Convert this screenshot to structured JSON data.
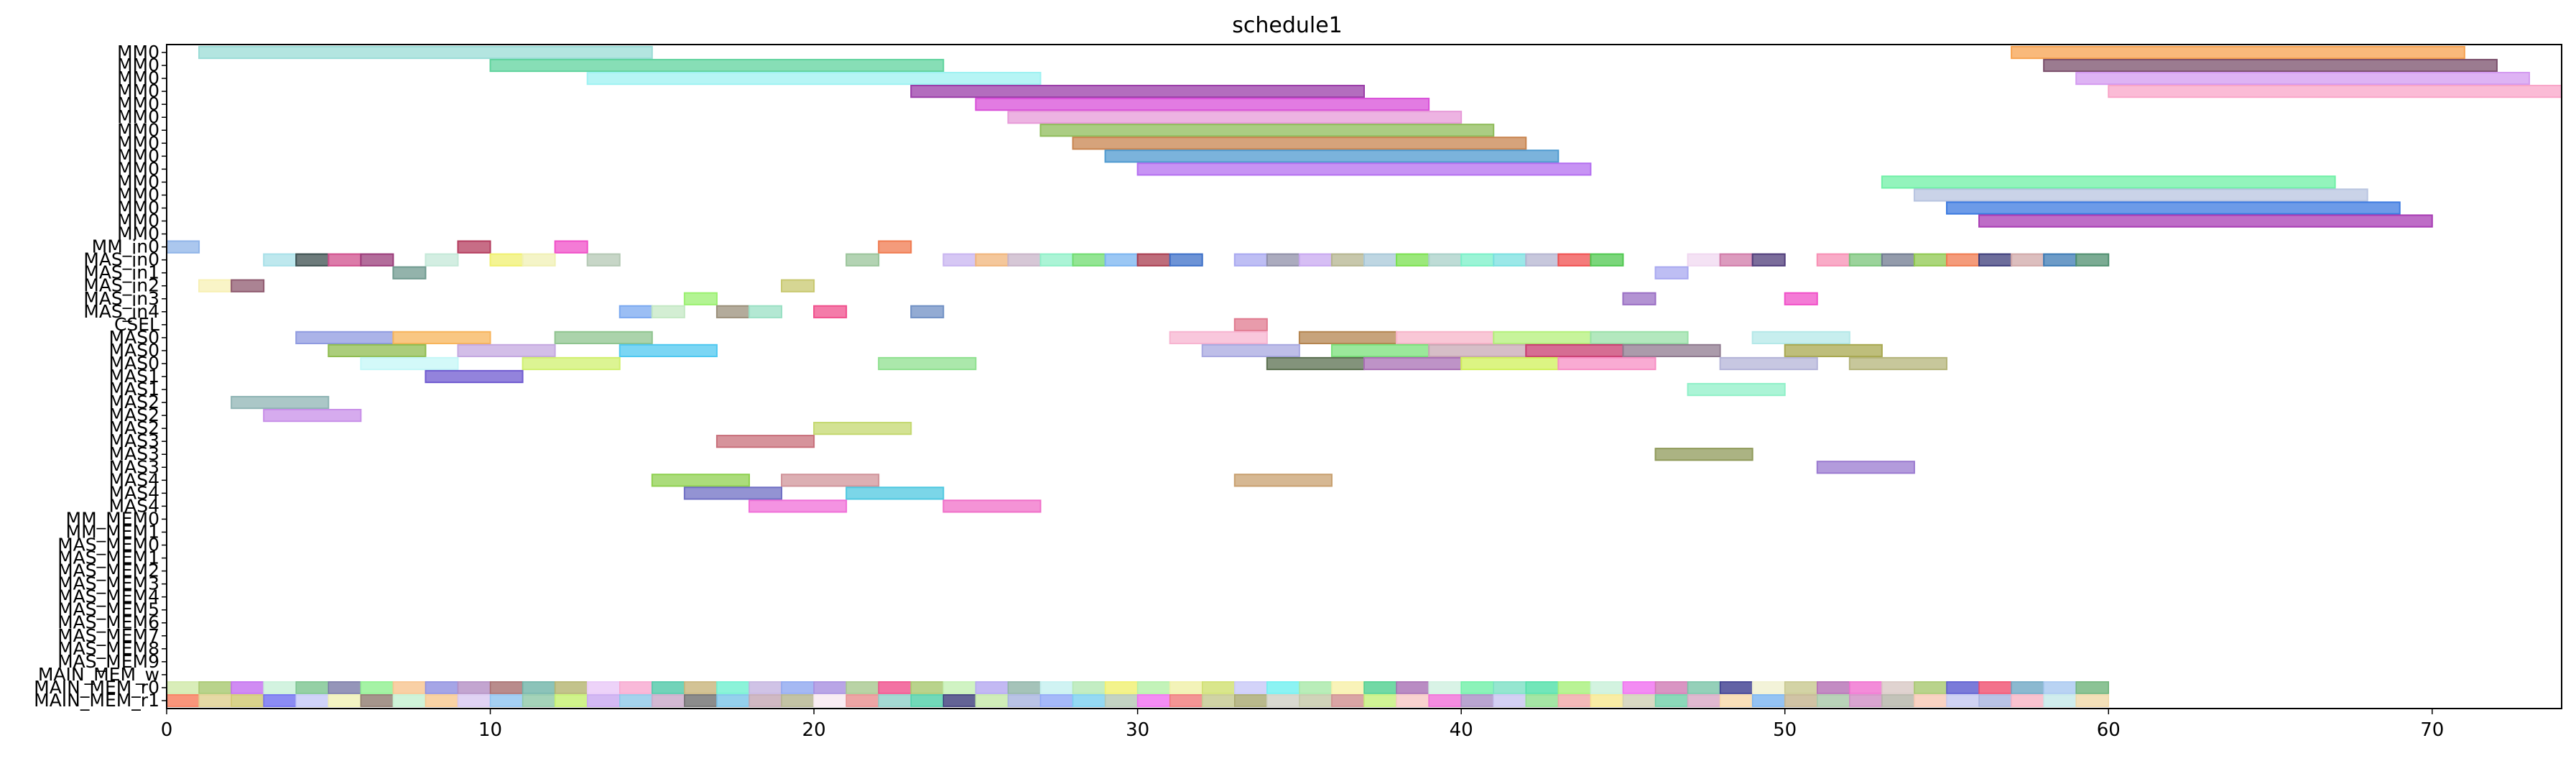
{
  "chart_data": {
    "type": "gantt",
    "title": "schedule1",
    "xlabel": "",
    "ylabel": "",
    "xlim": [
      0,
      74
    ],
    "x_ticks": [
      0,
      10,
      20,
      30,
      40,
      50,
      60,
      70
    ],
    "x_tick_labels": [
      "0",
      "10",
      "20",
      "30",
      "40",
      "50",
      "60",
      "70"
    ],
    "grid": false,
    "legend": "none",
    "rows": [
      "MM0",
      "MM0",
      "MM0",
      "MM0",
      "MM0",
      "MM0",
      "MM0",
      "MM0",
      "MM0",
      "MM0",
      "MM0",
      "MM0",
      "MM0",
      "MM0",
      "MM0",
      "MM_in0",
      "MAS_in0",
      "MAS_in1",
      "MAS_in2",
      "MAS_in3",
      "MAS_in4",
      "CSEL",
      "MAS0",
      "MAS0",
      "MAS0",
      "MAS1",
      "MAS1",
      "MAS2",
      "MAS2",
      "MAS2",
      "MAS3",
      "MAS3",
      "MAS3",
      "MAS4",
      "MAS4",
      "MAS4",
      "MM_MEM0",
      "MM_MEM1",
      "MAS_MEM0",
      "MAS_MEM1",
      "MAS_MEM2",
      "MAS_MEM3",
      "MAS_MEM4",
      "MAS_MEM5",
      "MAS_MEM6",
      "MAS_MEM7",
      "MAS_MEM8",
      "MAS_MEM9",
      "MAIN_MEM_w",
      "MAIN_MEM_r0",
      "MAIN_MEM_r1"
    ],
    "tasks": [
      {
        "row": 0,
        "start": 1,
        "end": 15,
        "color": "#9adcd6"
      },
      {
        "row": 0,
        "start": 57,
        "end": 71,
        "color": "#f7a24f"
      },
      {
        "row": 1,
        "start": 10,
        "end": 24,
        "color": "#5fd39d"
      },
      {
        "row": 1,
        "start": 58,
        "end": 72,
        "color": "#7a4f6b"
      },
      {
        "row": 2,
        "start": 13,
        "end": 27,
        "color": "#9ef2f2"
      },
      {
        "row": 2,
        "start": 59,
        "end": 73,
        "color": "#d39af0"
      },
      {
        "row": 3,
        "start": 23,
        "end": 37,
        "color": "#9a3ca8"
      },
      {
        "row": 3,
        "start": 60,
        "end": 74,
        "color": "#f9a4c8"
      },
      {
        "row": 4,
        "start": 25,
        "end": 39,
        "color": "#d84fd8"
      },
      {
        "row": 5,
        "start": 26,
        "end": 40,
        "color": "#e79ad8"
      },
      {
        "row": 6,
        "start": 27,
        "end": 41,
        "color": "#8fbc5a"
      },
      {
        "row": 7,
        "start": 28,
        "end": 42,
        "color": "#c8844f"
      },
      {
        "row": 8,
        "start": 29,
        "end": 43,
        "color": "#4f9ad0"
      },
      {
        "row": 9,
        "start": 30,
        "end": 44,
        "color": "#b46ff0"
      },
      {
        "row": 10,
        "start": 53,
        "end": 67,
        "color": "#6ff0a6"
      },
      {
        "row": 11,
        "start": 54,
        "end": 68,
        "color": "#b8c4e0"
      },
      {
        "row": 12,
        "start": 55,
        "end": 69,
        "color": "#3c7ae0"
      },
      {
        "row": 13,
        "start": 56,
        "end": 70,
        "color": "#a83cb4"
      },
      {
        "row": 15,
        "start": 0,
        "end": 1,
        "color": "#8fb4e8"
      },
      {
        "row": 15,
        "start": 9,
        "end": 10,
        "color": "#b43c5e"
      },
      {
        "row": 15,
        "start": 12,
        "end": 13,
        "color": "#f04fc8"
      },
      {
        "row": 15,
        "start": 22,
        "end": 23,
        "color": "#f07a4f"
      },
      {
        "row": 16,
        "start": 3,
        "end": 4,
        "color": "#a8e0e8"
      },
      {
        "row": 16,
        "start": 4,
        "end": 5,
        "color": "#3c4f4f"
      },
      {
        "row": 16,
        "start": 5,
        "end": 6,
        "color": "#d04f8c"
      },
      {
        "row": 16,
        "start": 6,
        "end": 7,
        "color": "#9a3c7a"
      },
      {
        "row": 16,
        "start": 8,
        "end": 9,
        "color": "#c4e8d8"
      },
      {
        "row": 16,
        "start": 10,
        "end": 11,
        "color": "#f0f06f"
      },
      {
        "row": 16,
        "start": 11,
        "end": 12,
        "color": "#f0f0b4"
      },
      {
        "row": 16,
        "start": 13,
        "end": 14,
        "color": "#b4c8b4"
      },
      {
        "row": 16,
        "start": 21,
        "end": 22,
        "color": "#9ac49a"
      },
      {
        "row": 16,
        "start": 24,
        "end": 25,
        "color": "#c8b4f0"
      },
      {
        "row": 16,
        "start": 25,
        "end": 26,
        "color": "#f0b47a"
      },
      {
        "row": 16,
        "start": 26,
        "end": 27,
        "color": "#c8b4c8"
      },
      {
        "row": 16,
        "start": 27,
        "end": 28,
        "color": "#8ff0c8"
      },
      {
        "row": 16,
        "start": 28,
        "end": 29,
        "color": "#6fdc6f"
      },
      {
        "row": 16,
        "start": 29,
        "end": 30,
        "color": "#7ab4f0"
      },
      {
        "row": 16,
        "start": 30,
        "end": 31,
        "color": "#a83c4f"
      },
      {
        "row": 16,
        "start": 31,
        "end": 32,
        "color": "#3c6fc8"
      },
      {
        "row": 16,
        "start": 33,
        "end": 34,
        "color": "#a8a8f0"
      },
      {
        "row": 16,
        "start": 34,
        "end": 35,
        "color": "#8f8fa8"
      },
      {
        "row": 16,
        "start": 35,
        "end": 36,
        "color": "#c8a8f0"
      },
      {
        "row": 16,
        "start": 36,
        "end": 37,
        "color": "#b4b48f"
      },
      {
        "row": 16,
        "start": 37,
        "end": 38,
        "color": "#a8c8d8"
      },
      {
        "row": 16,
        "start": 38,
        "end": 39,
        "color": "#7ae04f"
      },
      {
        "row": 16,
        "start": 39,
        "end": 40,
        "color": "#a8d0c8"
      },
      {
        "row": 16,
        "start": 40,
        "end": 41,
        "color": "#7af0c8"
      },
      {
        "row": 16,
        "start": 41,
        "end": 42,
        "color": "#7ae0e0"
      },
      {
        "row": 16,
        "start": 42,
        "end": 43,
        "color": "#b4b4d0"
      },
      {
        "row": 16,
        "start": 43,
        "end": 44,
        "color": "#f04f4f"
      },
      {
        "row": 16,
        "start": 44,
        "end": 45,
        "color": "#4fc84f"
      },
      {
        "row": 16,
        "start": 47,
        "end": 48,
        "color": "#f0d8f0"
      },
      {
        "row": 16,
        "start": 48,
        "end": 49,
        "color": "#d07aa8"
      },
      {
        "row": 16,
        "start": 49,
        "end": 50,
        "color": "#4f3c7a"
      },
      {
        "row": 16,
        "start": 51,
        "end": 52,
        "color": "#f78fb4"
      },
      {
        "row": 16,
        "start": 52,
        "end": 53,
        "color": "#7ac47a"
      },
      {
        "row": 16,
        "start": 53,
        "end": 54,
        "color": "#6f7a8f"
      },
      {
        "row": 16,
        "start": 54,
        "end": 55,
        "color": "#8fc84f"
      },
      {
        "row": 16,
        "start": 55,
        "end": 56,
        "color": "#f07a4f"
      },
      {
        "row": 16,
        "start": 56,
        "end": 57,
        "color": "#3c3c7a"
      },
      {
        "row": 16,
        "start": 57,
        "end": 58,
        "color": "#d0a8a8"
      },
      {
        "row": 16,
        "start": 58,
        "end": 59,
        "color": "#3c7ab4"
      },
      {
        "row": 16,
        "start": 59,
        "end": 60,
        "color": "#4f8f6f"
      },
      {
        "row": 17,
        "start": 7,
        "end": 8,
        "color": "#6f9a8f"
      },
      {
        "row": 17,
        "start": 46,
        "end": 47,
        "color": "#a8a8f0"
      },
      {
        "row": 18,
        "start": 1,
        "end": 2,
        "color": "#f7f0b4"
      },
      {
        "row": 18,
        "start": 2,
        "end": 3,
        "color": "#8f5a6f"
      },
      {
        "row": 18,
        "start": 19,
        "end": 20,
        "color": "#c8c86f"
      },
      {
        "row": 19,
        "start": 16,
        "end": 17,
        "color": "#9af06f"
      },
      {
        "row": 19,
        "start": 45,
        "end": 46,
        "color": "#9a6fc4"
      },
      {
        "row": 19,
        "start": 50,
        "end": 51,
        "color": "#f04fc8"
      },
      {
        "row": 20,
        "start": 14,
        "end": 15,
        "color": "#7aa8f0"
      },
      {
        "row": 20,
        "start": 15,
        "end": 16,
        "color": "#c4e8c4"
      },
      {
        "row": 20,
        "start": 17,
        "end": 18,
        "color": "#9a8f7a"
      },
      {
        "row": 20,
        "start": 18,
        "end": 19,
        "color": "#9ae0c4"
      },
      {
        "row": 20,
        "start": 20,
        "end": 21,
        "color": "#f04f8c"
      },
      {
        "row": 20,
        "start": 23,
        "end": 24,
        "color": "#6f8fc4"
      },
      {
        "row": 21,
        "start": 33,
        "end": 34,
        "color": "#e07a8f"
      },
      {
        "row": 22,
        "start": 4,
        "end": 7,
        "color": "#8f9ae0"
      },
      {
        "row": 22,
        "start": 7,
        "end": 10,
        "color": "#f7b45a"
      },
      {
        "row": 22,
        "start": 12,
        "end": 15,
        "color": "#8fc48f"
      },
      {
        "row": 22,
        "start": 31,
        "end": 34,
        "color": "#f7b4d0"
      },
      {
        "row": 22,
        "start": 35,
        "end": 38,
        "color": "#b4844f"
      },
      {
        "row": 22,
        "start": 38,
        "end": 41,
        "color": "#f7b4c8"
      },
      {
        "row": 22,
        "start": 41,
        "end": 44,
        "color": "#b4f07a"
      },
      {
        "row": 22,
        "start": 44,
        "end": 47,
        "color": "#9ae0a8"
      },
      {
        "row": 22,
        "start": 49,
        "end": 52,
        "color": "#b4e8e8"
      },
      {
        "row": 23,
        "start": 5,
        "end": 8,
        "color": "#8fbc4f"
      },
      {
        "row": 23,
        "start": 9,
        "end": 12,
        "color": "#c4a8e0"
      },
      {
        "row": 23,
        "start": 14,
        "end": 17,
        "color": "#4fc8f0"
      },
      {
        "row": 23,
        "start": 32,
        "end": 35,
        "color": "#a8a8e0"
      },
      {
        "row": 23,
        "start": 36,
        "end": 39,
        "color": "#7ae07a"
      },
      {
        "row": 23,
        "start": 39,
        "end": 42,
        "color": "#c8a8b4"
      },
      {
        "row": 23,
        "start": 42,
        "end": 45,
        "color": "#c83c6f"
      },
      {
        "row": 23,
        "start": 45,
        "end": 48,
        "color": "#8f7a8f"
      },
      {
        "row": 23,
        "start": 50,
        "end": 53,
        "color": "#a8a84f"
      },
      {
        "row": 24,
        "start": 6,
        "end": 9,
        "color": "#c4f7f7"
      },
      {
        "row": 24,
        "start": 11,
        "end": 14,
        "color": "#d0f06f"
      },
      {
        "row": 24,
        "start": 22,
        "end": 25,
        "color": "#8fe08f"
      },
      {
        "row": 24,
        "start": 34,
        "end": 37,
        "color": "#5a6f4f"
      },
      {
        "row": 24,
        "start": 37,
        "end": 40,
        "color": "#a86fb4"
      },
      {
        "row": 24,
        "start": 40,
        "end": 43,
        "color": "#d0f05a"
      },
      {
        "row": 24,
        "start": 43,
        "end": 46,
        "color": "#f78fc4"
      },
      {
        "row": 24,
        "start": 48,
        "end": 51,
        "color": "#b4b4d8"
      },
      {
        "row": 24,
        "start": 52,
        "end": 55,
        "color": "#b4b47a"
      },
      {
        "row": 25,
        "start": 8,
        "end": 11,
        "color": "#6f5ad0"
      },
      {
        "row": 26,
        "start": 47,
        "end": 50,
        "color": "#8ff0c8"
      },
      {
        "row": 27,
        "start": 2,
        "end": 5,
        "color": "#8fb4b4"
      },
      {
        "row": 28,
        "start": 3,
        "end": 6,
        "color": "#c88fe8"
      },
      {
        "row": 29,
        "start": 20,
        "end": 23,
        "color": "#c4d86f"
      },
      {
        "row": 30,
        "start": 17,
        "end": 20,
        "color": "#c86f7a"
      },
      {
        "row": 31,
        "start": 46,
        "end": 49,
        "color": "#8f9a5a"
      },
      {
        "row": 32,
        "start": 51,
        "end": 54,
        "color": "#9a7ad0"
      },
      {
        "row": 33,
        "start": 15,
        "end": 18,
        "color": "#8fd04f"
      },
      {
        "row": 33,
        "start": 19,
        "end": 22,
        "color": "#d0949a"
      },
      {
        "row": 33,
        "start": 33,
        "end": 36,
        "color": "#c8a06f"
      },
      {
        "row": 34,
        "start": 16,
        "end": 19,
        "color": "#6f6fc4"
      },
      {
        "row": 34,
        "start": 21,
        "end": 24,
        "color": "#4fc8e0"
      },
      {
        "row": 35,
        "start": 18,
        "end": 21,
        "color": "#f06fd8"
      },
      {
        "row": 35,
        "start": 24,
        "end": 27,
        "color": "#f06fc8"
      }
    ],
    "mem_rows": {
      "49": [
        "#d0e8a8",
        "#a8c86f",
        "#c46ff0",
        "#c8f0d8",
        "#7ac48f",
        "#7a7aa8",
        "#8ff08f",
        "#f7c48f",
        "#8f8fe0",
        "#b48fc4",
        "#a86f6f",
        "#6fb4a8",
        "#b4b46f",
        "#e8c8f7",
        "#f7a8d0",
        "#4fc8a8",
        "#c8b47a",
        "#6ff0d0",
        "#c4b4e0",
        "#8fa8f0",
        "#a88fe0",
        "#a8c88f",
        "#f04f8c",
        "#a8c86f",
        "#c4f0b4",
        "#b4a8f0",
        "#8fb4a8",
        "#c4f0f0",
        "#b4e8b4",
        "#f0f06f",
        "#b4f0a8",
        "#f0f0a8",
        "#d0e06f",
        "#c8c8f7",
        "#6ff0f0",
        "#a8e8a8",
        "#f7f0a8",
        "#4fd08f",
        "#a86fb4",
        "#d0f0e0",
        "#6ff0a8",
        "#7ae0c4",
        "#4fe0a8",
        "#a8f07a",
        "#c8f0d8",
        "#f06ff0",
        "#d07ab4",
        "#7ac4a8",
        "#3c3c8f",
        "#f0f0d0",
        "#c8c88f",
        "#b46fb4",
        "#f06fd0",
        "#d8c8c4",
        "#a8c86f",
        "#5a5ad0",
        "#f04f6f",
        "#6fa8c4",
        "#a8c8f0",
        "#6fb47a"
      ],
      "50": [
        "#f77a5a",
        "#e0d08f",
        "#d0c86f",
        "#6f6ff0",
        "#c4c8f7",
        "#f0f0b4",
        "#8f7a6f",
        "#c4f0d0",
        "#f7c88f",
        "#d8c8f0",
        "#8fc4f0",
        "#8fc8a8",
        "#c4f06f",
        "#c8a8f0",
        "#8fc8e8",
        "#c8a8c8",
        "#6f6f6f",
        "#7ac4e8",
        "#c4a8b4",
        "#b4b48f",
        "#f7e8f0",
        "#e88f8f",
        "#8fd0c8",
        "#4fd0a8",
        "#3c3c7a",
        "#c4e8a8",
        "#a8b4e0",
        "#8fa8f7",
        "#7ad0f0",
        "#b4c8b4",
        "#f06ff0",
        "#f07a7a",
        "#c4c88f",
        "#a8a86f",
        "#d0d0c4",
        "#c4c8a8",
        "#d08f8f",
        "#c4f07a",
        "#f7c8c4",
        "#f06fd8",
        "#a88fc4",
        "#c8c4f0",
        "#8fe08f",
        "#f0a8a8",
        "#f7e88f",
        "#d0d0b4",
        "#6fd0a8",
        "#d8a8c4",
        "#f7d8a8",
        "#7ab4f0",
        "#c4b48f",
        "#a8c8a8",
        "#d08fc4",
        "#b4b4a8",
        "#f7c8b4",
        "#c4c8f0",
        "#a8b4e0",
        "#f7b4c4",
        "#c4e8e8",
        "#f0d8a8"
      ]
    }
  }
}
